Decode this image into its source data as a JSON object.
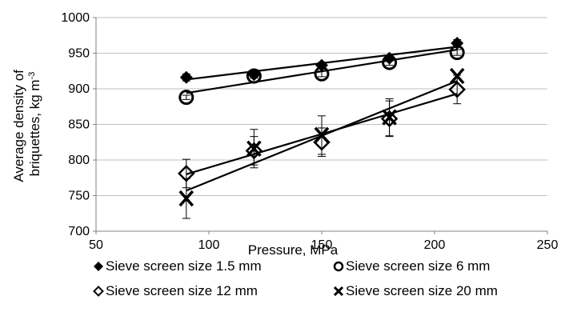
{
  "chart_data": {
    "type": "scatter",
    "title": "",
    "xlabel": "Pressure, MPa",
    "ylabel_line1": "Average density of",
    "ylabel_line2": "briquettes, kg m",
    "ylabel_sup": "-3",
    "xlim": [
      50,
      250
    ],
    "ylim": [
      700,
      1000
    ],
    "xticks": [
      "50",
      "100",
      "150",
      "200",
      "250"
    ],
    "yticks": [
      "700",
      "750",
      "800",
      "850",
      "900",
      "950",
      "1000"
    ],
    "grid": "horizontal",
    "legend_position": "bottom",
    "series": [
      {
        "name": "Sieve screen size 1.5 mm",
        "marker": "diamond-filled",
        "x": [
          90,
          120,
          150,
          180,
          210
        ],
        "y": [
          916,
          920,
          933,
          943,
          964
        ],
        "err": [
          5,
          4,
          4,
          4,
          5
        ],
        "trend": [
          [
            90,
            913
          ],
          [
            210,
            959
          ]
        ]
      },
      {
        "name": "Sieve screen size 6 mm",
        "marker": "circle-open",
        "x": [
          90,
          120,
          150,
          180,
          210
        ],
        "y": [
          888,
          918,
          921,
          937,
          951
        ],
        "err": [
          3,
          3,
          4,
          4,
          4
        ],
        "trend": [
          [
            90,
            894
          ],
          [
            210,
            955
          ]
        ]
      },
      {
        "name": "Sieve screen size 12 mm",
        "marker": "diamond-open",
        "x": [
          90,
          120,
          150,
          180,
          210
        ],
        "y": [
          781,
          813,
          825,
          858,
          899
        ],
        "err": [
          20,
          20,
          20,
          25,
          20
        ],
        "trend": [
          [
            90,
            780
          ],
          [
            210,
            893
          ]
        ]
      },
      {
        "name": "Sieve screen size 20 mm",
        "marker": "x",
        "x": [
          90,
          120,
          150,
          180,
          210
        ],
        "y": [
          746,
          816,
          835,
          860,
          918
        ],
        "err": [
          28,
          27,
          27,
          26,
          0
        ],
        "trend": [
          [
            90,
            757
          ],
          [
            210,
            911
          ]
        ]
      }
    ]
  }
}
